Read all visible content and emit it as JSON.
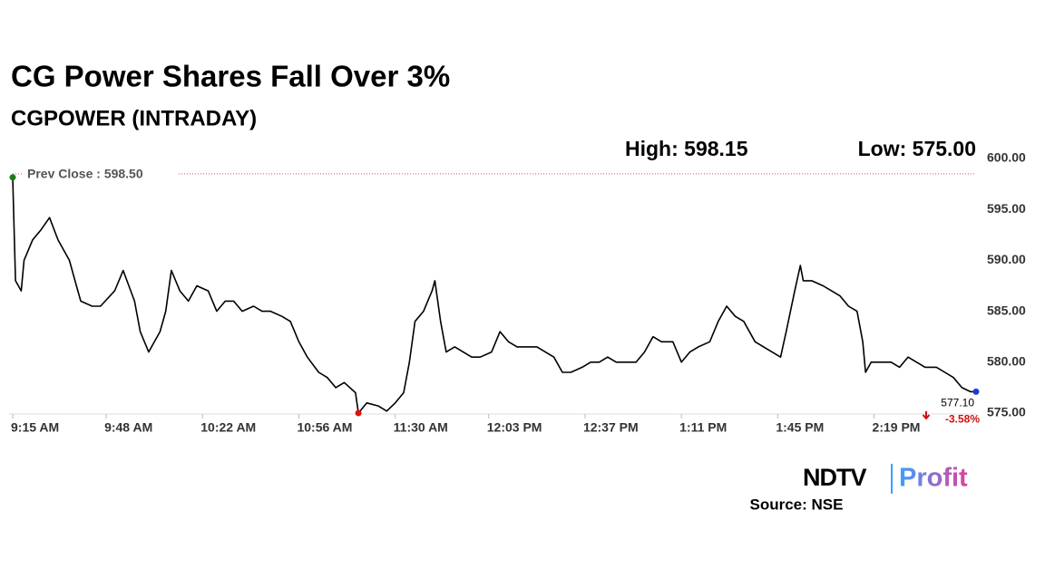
{
  "chart_data": {
    "type": "line",
    "title": "CG Power Shares Fall Over 3%",
    "subtitle": "CGPOWER (INTRADAY)",
    "high_text": "High: 598.15",
    "low_text": "Low: 575.00",
    "prev_close": {
      "value": 598.5,
      "label": "Prev Close : 598.50"
    },
    "last": {
      "value": 577.1,
      "label": "577.10"
    },
    "change": {
      "value": -3.58,
      "label": "-3.58%"
    },
    "source": "Source: NSE",
    "logo": {
      "brand": "NDTV",
      "product": "Profit"
    },
    "x": [
      0,
      1,
      3,
      4,
      7,
      10,
      13,
      16,
      20,
      22,
      24,
      28,
      31,
      36,
      39,
      43,
      45,
      48,
      52,
      54,
      56,
      59,
      62,
      65,
      69,
      72,
      75,
      78,
      81,
      85,
      88,
      91,
      95,
      98,
      101,
      104,
      108,
      111,
      114,
      117,
      121,
      122,
      125,
      129,
      132,
      135,
      138,
      140,
      142,
      145,
      148,
      149,
      151,
      153,
      156,
      159,
      162,
      165,
      169,
      172,
      175,
      178,
      181,
      185,
      188,
      191,
      194,
      197,
      201,
      204,
      207,
      210,
      213,
      217,
      220,
      223,
      226,
      229,
      233,
      236,
      239,
      242,
      246,
      249,
      252,
      255,
      258,
      262,
      265,
      268,
      271,
      273,
      276,
      278,
      279,
      282,
      286,
      289,
      292,
      295,
      298,
      300,
      301,
      303,
      306,
      310,
      313,
      316,
      319,
      322,
      326,
      329,
      332,
      335,
      338,
      340
    ],
    "series": [
      {
        "name": "CGPOWER",
        "color": "#000000",
        "values": [
          598.15,
          588,
          587,
          590,
          592,
          593,
          594.2,
          592,
          590,
          588,
          586,
          585.5,
          585.5,
          587,
          589,
          586,
          583,
          581,
          583,
          585,
          589,
          587,
          586,
          587.5,
          587,
          585,
          586,
          586,
          585,
          585.5,
          585,
          585,
          584.5,
          584,
          582,
          580.5,
          579,
          578.5,
          577.5,
          578,
          577,
          575,
          576,
          575.7,
          575.2,
          576,
          577,
          580,
          584,
          585,
          587,
          588,
          584,
          581,
          581.5,
          581,
          580.5,
          580.5,
          581,
          583,
          582,
          581.5,
          581.5,
          581.5,
          581,
          580.5,
          579,
          579,
          579.5,
          580,
          580,
          580.5,
          580,
          580,
          580,
          581,
          582.5,
          582,
          582,
          580,
          581,
          581.5,
          582,
          584,
          585.5,
          584.5,
          584,
          582,
          581.5,
          581,
          580.5,
          583,
          587,
          589.5,
          588,
          588,
          587.5,
          587,
          586.5,
          585.5,
          585,
          582,
          579,
          580,
          580,
          580,
          579.5,
          580.5,
          580,
          579.5,
          579.5,
          579,
          578.5,
          577.5,
          577.1,
          577.1
        ]
      }
    ],
    "xlim": [
      0,
      340
    ],
    "xticks": [
      {
        "value": 0,
        "label": "9:15 AM"
      },
      {
        "value": 33,
        "label": "9:48 AM"
      },
      {
        "value": 67,
        "label": "10:22 AM"
      },
      {
        "value": 101,
        "label": "10:56 AM"
      },
      {
        "value": 135,
        "label": "11:30 AM"
      },
      {
        "value": 168,
        "label": "12:03 PM"
      },
      {
        "value": 202,
        "label": "12:37 PM"
      },
      {
        "value": 236,
        "label": "1:11 PM"
      },
      {
        "value": 270,
        "label": "1:45 PM"
      },
      {
        "value": 304,
        "label": "2:19 PM"
      }
    ],
    "ylim": [
      575,
      600
    ],
    "yticks": [
      {
        "value": 575,
        "label": "575.00"
      },
      {
        "value": 580,
        "label": "580.00"
      },
      {
        "value": 585,
        "label": "585.00"
      },
      {
        "value": 590,
        "label": "590.00"
      },
      {
        "value": 595,
        "label": "595.00"
      },
      {
        "value": 600,
        "label": "600.00"
      }
    ],
    "prev_close_color": "#e05050",
    "high_marker_color": "#1a7a1a",
    "low_marker_color": "#e01010",
    "last_marker_color": "#1a3fd0",
    "change_color": "#d01010"
  }
}
